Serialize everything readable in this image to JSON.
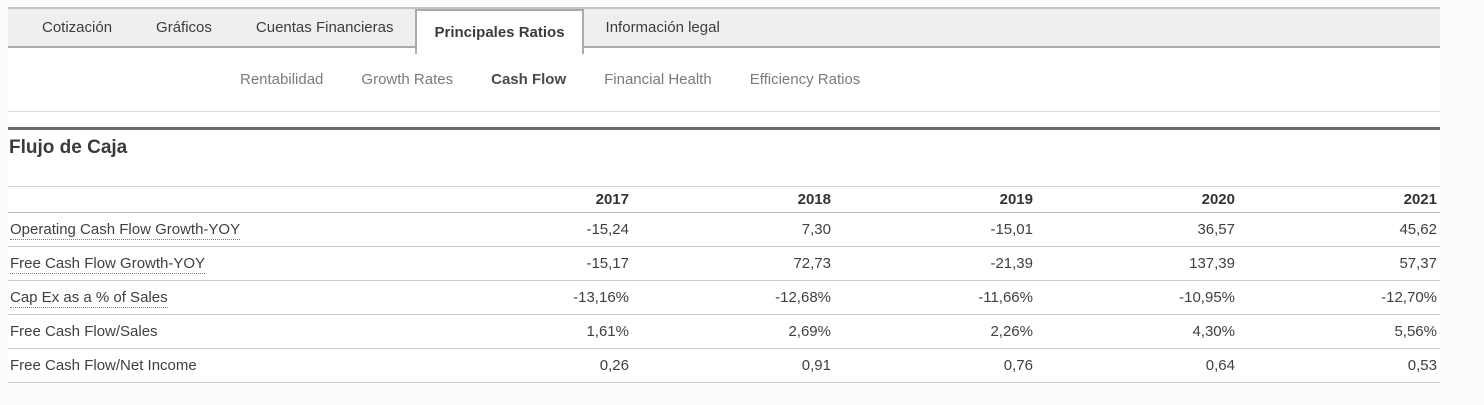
{
  "main_tabs": {
    "items": [
      {
        "label": "Cotización",
        "active": false
      },
      {
        "label": "Gráficos",
        "active": false
      },
      {
        "label": "Cuentas Financieras",
        "active": false
      },
      {
        "label": "Principales Ratios",
        "active": true
      },
      {
        "label": "Información legal",
        "active": false
      }
    ]
  },
  "sub_tabs": {
    "items": [
      {
        "label": "Rentabilidad",
        "active": false
      },
      {
        "label": "Growth Rates",
        "active": false
      },
      {
        "label": "Cash Flow",
        "active": true
      },
      {
        "label": "Financial Health",
        "active": false
      },
      {
        "label": "Efficiency Ratios",
        "active": false
      }
    ]
  },
  "section": {
    "title": "Flujo de Caja"
  },
  "table": {
    "years": [
      "2017",
      "2018",
      "2019",
      "2020",
      "2021"
    ],
    "rows": [
      {
        "label": "Operating Cash Flow Growth-YOY",
        "has_tooltip_underline": true,
        "values": [
          "-15,24",
          "7,30",
          "-15,01",
          "36,57",
          "45,62"
        ]
      },
      {
        "label": "Free Cash Flow Growth-YOY",
        "has_tooltip_underline": true,
        "values": [
          "-15,17",
          "72,73",
          "-21,39",
          "137,39",
          "57,37"
        ]
      },
      {
        "label": "Cap Ex as a % of Sales",
        "has_tooltip_underline": true,
        "values": [
          "-13,16%",
          "-12,68%",
          "-11,66%",
          "-10,95%",
          "-12,70%"
        ]
      },
      {
        "label": "Free Cash Flow/Sales",
        "has_tooltip_underline": false,
        "values": [
          "1,61%",
          "2,69%",
          "2,26%",
          "4,30%",
          "5,56%"
        ]
      },
      {
        "label": "Free Cash Flow/Net Income",
        "has_tooltip_underline": false,
        "values": [
          "0,26",
          "0,91",
          "0,76",
          "0,64",
          "0,53"
        ]
      }
    ]
  },
  "colors": {
    "tab_bar_bg": "#efefee",
    "tab_border": "#ababab",
    "section_rule": "#6b6b6b",
    "table_line": "#cccccc",
    "text": "#3f3f3f",
    "muted_text": "#7b7b7b"
  }
}
